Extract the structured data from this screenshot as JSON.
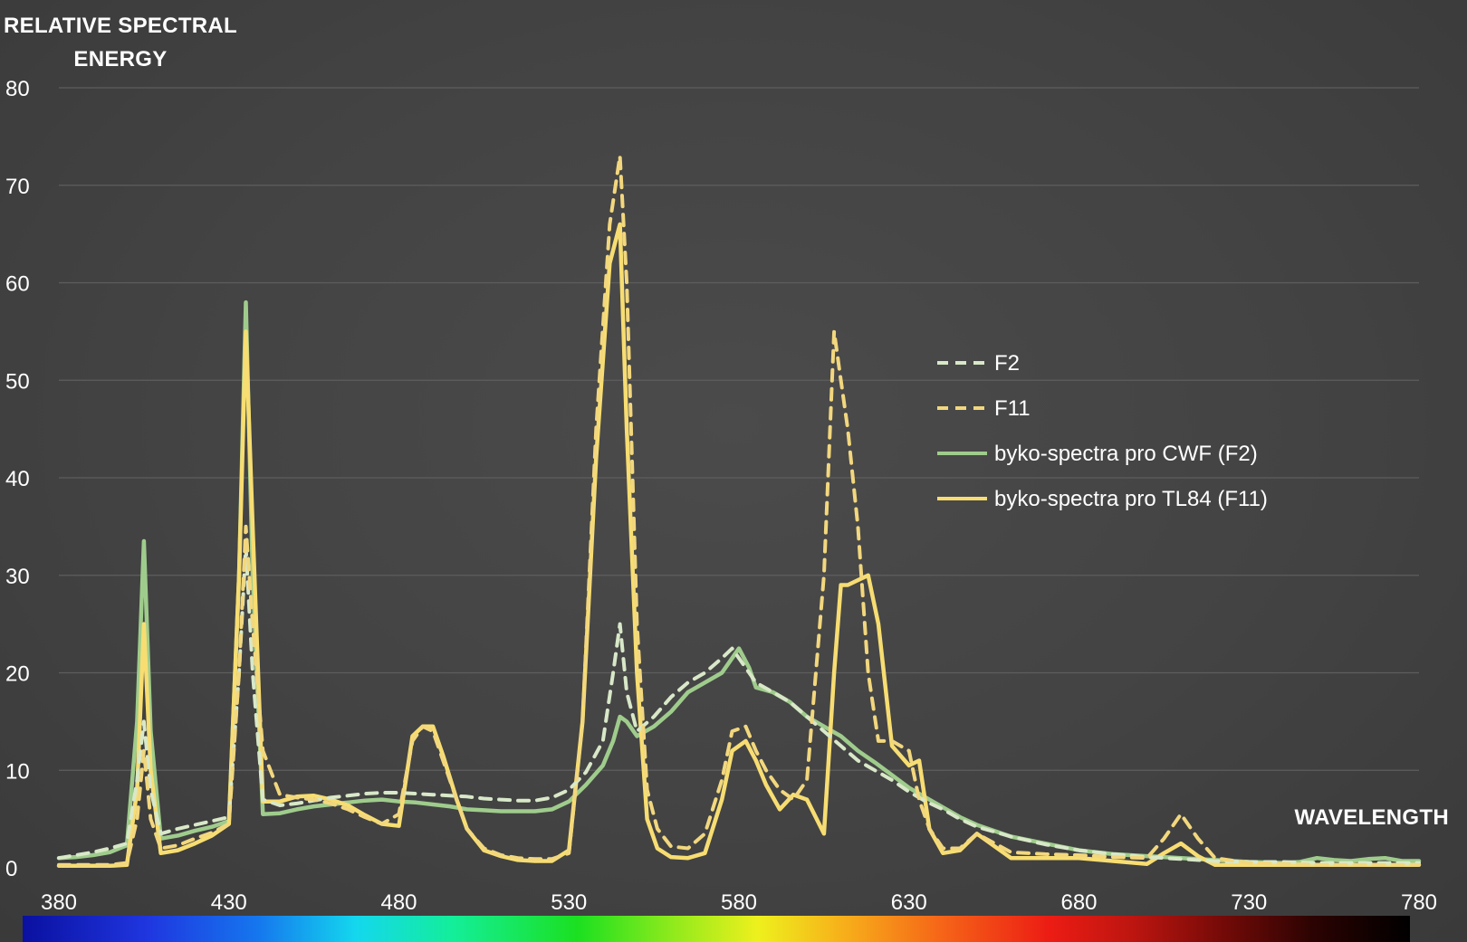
{
  "chart_data": {
    "type": "line",
    "ylabel": "RELATIVE SPECTRAL\nENERGY",
    "xlabel": "WAVELENGTH",
    "xlim": [
      380,
      780
    ],
    "ylim": [
      0,
      80
    ],
    "xticks": [
      380,
      430,
      480,
      530,
      580,
      630,
      680,
      730,
      780
    ],
    "yticks": [
      0,
      10,
      20,
      30,
      40,
      50,
      60,
      70,
      80
    ],
    "grid": "horizontal",
    "legend_position": "right-middle",
    "series": [
      {
        "name": "F2",
        "style": "dashed",
        "color": "#d8e8c8",
        "x": [
          380,
          385,
          390,
          395,
          400,
          403,
          405,
          407,
          410,
          415,
          420,
          425,
          430,
          433,
          435,
          437,
          440,
          445,
          450,
          455,
          460,
          465,
          470,
          475,
          480,
          485,
          490,
          495,
          500,
          505,
          510,
          515,
          520,
          525,
          530,
          535,
          540,
          543,
          545,
          547,
          550,
          555,
          560,
          565,
          570,
          575,
          578,
          580,
          583,
          585,
          590,
          595,
          600,
          605,
          610,
          615,
          620,
          625,
          630,
          635,
          640,
          645,
          650,
          660,
          670,
          680,
          690,
          700,
          710,
          720,
          730,
          740,
          750,
          760,
          770,
          780
        ],
        "y": [
          1.0,
          1.3,
          1.6,
          2.0,
          2.5,
          9.0,
          15.0,
          8.0,
          3.5,
          4.0,
          4.4,
          4.8,
          5.2,
          20.0,
          33.0,
          20.0,
          7.0,
          6.4,
          6.6,
          6.9,
          7.2,
          7.4,
          7.6,
          7.7,
          7.7,
          7.6,
          7.5,
          7.4,
          7.3,
          7.1,
          7.0,
          6.9,
          6.9,
          7.2,
          8.0,
          9.8,
          13.0,
          20.0,
          25.0,
          18.0,
          14.0,
          15.5,
          17.5,
          19.0,
          20.0,
          21.5,
          22.5,
          21.5,
          20.0,
          19.0,
          18.0,
          17.0,
          15.5,
          14.0,
          12.5,
          11.0,
          10.0,
          9.0,
          7.8,
          6.8,
          6.0,
          5.0,
          4.2,
          3.2,
          2.4,
          1.8,
          1.4,
          1.1,
          0.9,
          0.7,
          0.6,
          0.6,
          0.5,
          0.5,
          0.5,
          0.5
        ]
      },
      {
        "name": "F11",
        "style": "dashed",
        "color": "#f2d77e",
        "x": [
          380,
          385,
          390,
          395,
          400,
          403,
          405,
          407,
          410,
          415,
          420,
          425,
          430,
          433,
          435,
          437,
          440,
          445,
          450,
          455,
          460,
          465,
          470,
          475,
          480,
          484,
          487,
          490,
          493,
          497,
          500,
          505,
          510,
          515,
          520,
          525,
          530,
          534,
          538,
          542,
          545,
          547,
          550,
          553,
          556,
          560,
          565,
          570,
          575,
          578,
          582,
          585,
          588,
          592,
          596,
          600,
          605,
          608,
          610,
          612,
          615,
          618,
          621,
          625,
          630,
          633,
          636,
          640,
          645,
          650,
          660,
          670,
          680,
          690,
          700,
          705,
          710,
          715,
          720,
          730,
          740,
          750,
          760,
          770,
          780
        ],
        "y": [
          0.3,
          0.3,
          0.3,
          0.3,
          0.5,
          5.0,
          12.0,
          5.0,
          2.0,
          2.3,
          3.0,
          3.6,
          4.5,
          20.0,
          35.0,
          25.0,
          12.0,
          7.5,
          7.2,
          7.0,
          6.6,
          6.0,
          5.2,
          4.5,
          5.5,
          13.0,
          14.5,
          14.0,
          11.0,
          7.0,
          4.0,
          2.0,
          1.3,
          1.0,
          0.9,
          0.9,
          1.5,
          15.0,
          45.0,
          66.0,
          73.0,
          60.0,
          25.0,
          8.0,
          4.0,
          2.2,
          2.0,
          3.5,
          9.0,
          14.0,
          14.5,
          12.0,
          10.0,
          8.0,
          7.0,
          9.0,
          30.0,
          55.0,
          50.0,
          45.0,
          35.0,
          20.0,
          13.0,
          13.0,
          12.0,
          7.0,
          4.0,
          2.0,
          2.0,
          3.5,
          1.6,
          1.4,
          1.3,
          1.1,
          1.0,
          3.0,
          5.5,
          3.0,
          1.0,
          0.5,
          0.4,
          0.3,
          0.3,
          0.3,
          0.3
        ]
      },
      {
        "name": "byko-spectra pro CWF (F2)",
        "style": "solid",
        "color": "#9fcc8c",
        "x": [
          380,
          385,
          390,
          395,
          400,
          403,
          405,
          407,
          410,
          415,
          420,
          425,
          430,
          433,
          435,
          437,
          440,
          445,
          450,
          455,
          460,
          465,
          470,
          475,
          480,
          485,
          490,
          495,
          500,
          505,
          510,
          515,
          520,
          525,
          530,
          535,
          540,
          543,
          545,
          547,
          550,
          555,
          560,
          565,
          570,
          575,
          578,
          580,
          583,
          585,
          590,
          595,
          600,
          605,
          610,
          615,
          620,
          625,
          630,
          635,
          640,
          645,
          650,
          660,
          670,
          680,
          690,
          700,
          710,
          720,
          730,
          740,
          745,
          750,
          755,
          760,
          765,
          770,
          775,
          780
        ],
        "y": [
          1.0,
          1.1,
          1.3,
          1.6,
          2.3,
          15.0,
          33.5,
          14.0,
          3.0,
          3.3,
          3.8,
          4.2,
          4.8,
          30.0,
          58.0,
          30.0,
          5.5,
          5.6,
          6.0,
          6.3,
          6.5,
          6.7,
          6.9,
          7.0,
          6.8,
          6.7,
          6.5,
          6.3,
          6.0,
          5.9,
          5.8,
          5.8,
          5.8,
          6.0,
          6.8,
          8.5,
          10.5,
          13.0,
          15.5,
          15.0,
          13.5,
          14.5,
          16.0,
          18.0,
          19.0,
          20.0,
          21.5,
          22.5,
          20.5,
          18.5,
          18.0,
          17.0,
          15.5,
          14.5,
          13.5,
          12.0,
          10.8,
          9.5,
          8.2,
          7.2,
          6.2,
          5.2,
          4.4,
          3.2,
          2.5,
          1.8,
          1.4,
          1.2,
          1.0,
          0.8,
          0.6,
          0.5,
          0.6,
          1.0,
          0.8,
          0.7,
          0.9,
          1.0,
          0.7,
          0.7
        ]
      },
      {
        "name": "byko-spectra pro TL84 (F11)",
        "style": "solid",
        "color": "#f7dd72",
        "x": [
          380,
          385,
          390,
          395,
          400,
          403,
          405,
          407,
          410,
          415,
          420,
          425,
          430,
          433,
          435,
          437,
          440,
          445,
          450,
          455,
          460,
          465,
          470,
          475,
          480,
          484,
          487,
          490,
          493,
          497,
          500,
          505,
          510,
          515,
          520,
          525,
          530,
          534,
          538,
          542,
          545,
          547,
          550,
          553,
          556,
          560,
          565,
          570,
          575,
          578,
          582,
          585,
          588,
          592,
          596,
          600,
          605,
          608,
          610,
          612,
          615,
          618,
          621,
          625,
          630,
          633,
          636,
          640,
          645,
          650,
          660,
          670,
          680,
          690,
          700,
          705,
          710,
          715,
          720,
          730,
          740,
          750,
          760,
          770,
          780
        ],
        "y": [
          0.2,
          0.2,
          0.2,
          0.2,
          0.3,
          8.0,
          25.0,
          10.0,
          1.5,
          1.8,
          2.5,
          3.3,
          4.5,
          30.0,
          55.0,
          35.0,
          6.8,
          6.8,
          7.3,
          7.4,
          7.0,
          6.4,
          5.4,
          4.5,
          4.3,
          13.5,
          14.5,
          14.5,
          11.5,
          7.0,
          4.0,
          1.8,
          1.2,
          0.8,
          0.7,
          0.7,
          1.8,
          15.0,
          42.0,
          62.0,
          66.0,
          45.0,
          20.0,
          5.0,
          2.0,
          1.1,
          1.0,
          1.5,
          7.0,
          12.0,
          13.0,
          11.0,
          8.5,
          6.0,
          7.5,
          7.0,
          3.5,
          20.0,
          29.0,
          29.0,
          29.5,
          30.0,
          25.0,
          12.5,
          10.5,
          11.0,
          4.0,
          1.5,
          1.8,
          3.5,
          1.0,
          1.0,
          1.0,
          0.7,
          0.4,
          1.5,
          2.5,
          1.2,
          0.3,
          0.3,
          0.3,
          0.3,
          0.3,
          0.3,
          0.3
        ]
      }
    ]
  }
}
